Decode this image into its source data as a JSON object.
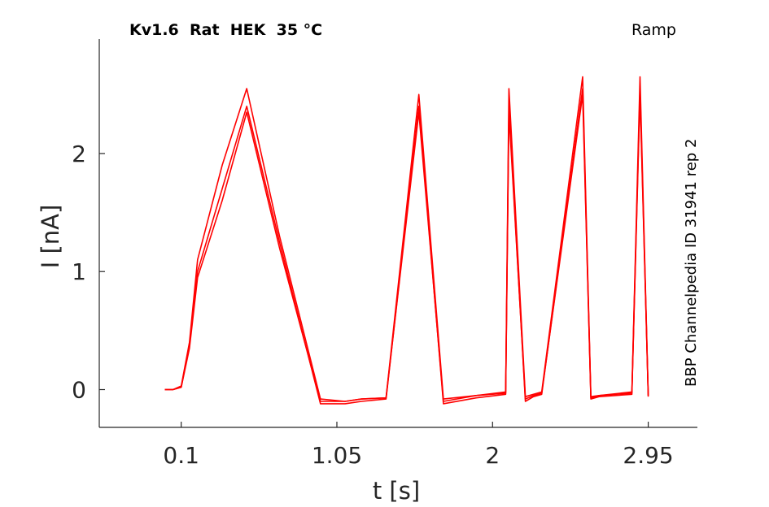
{
  "chart_data": {
    "type": "line",
    "title": "Kv1.6  Rat  HEK  35 °C",
    "protocol": "Ramp",
    "source": "BBP Channelpedia ID 31941 rep 2",
    "xlabel": "t [s]",
    "ylabel": "I [nA]",
    "xlim": [
      -0.4,
      3.25
    ],
    "ylim": [
      -0.32,
      2.97
    ],
    "xticks": [
      0.1,
      1.05,
      2,
      2.95
    ],
    "xtick_labels": [
      "0.1",
      "1.05",
      "2",
      "2.95"
    ],
    "yticks": [
      0,
      1,
      2
    ],
    "ytick_labels": [
      "0",
      "1",
      "2"
    ],
    "grid": false,
    "color": "#ff0000",
    "series": [
      {
        "x": [
          -0.0,
          0.05,
          0.1,
          0.15,
          0.2,
          0.35,
          0.5,
          0.7,
          0.95,
          1.1,
          1.2,
          1.35,
          1.55,
          1.7,
          1.9,
          2.08,
          2.1,
          2.2,
          2.25,
          2.3,
          2.55,
          2.6,
          2.65,
          2.85,
          2.9,
          2.95
        ],
        "y": [
          0.0,
          0.0,
          0.02,
          0.35,
          0.95,
          1.6,
          2.35,
          1.2,
          -0.1,
          -0.1,
          -0.08,
          -0.07,
          2.35,
          -0.1,
          -0.05,
          -0.03,
          2.35,
          -0.08,
          -0.05,
          -0.03,
          2.5,
          -0.07,
          -0.05,
          -0.03,
          2.5,
          -0.05
        ]
      },
      {
        "x": [
          -0.0,
          0.05,
          0.1,
          0.15,
          0.2,
          0.35,
          0.5,
          0.7,
          0.95,
          1.1,
          1.2,
          1.35,
          1.55,
          1.7,
          1.9,
          2.08,
          2.1,
          2.2,
          2.25,
          2.3,
          2.55,
          2.6,
          2.65,
          2.85,
          2.9,
          2.95
        ],
        "y": [
          0.0,
          0.0,
          0.03,
          0.4,
          1.1,
          1.9,
          2.55,
          1.3,
          -0.08,
          -0.1,
          -0.08,
          -0.07,
          2.5,
          -0.08,
          -0.05,
          -0.02,
          2.55,
          -0.06,
          -0.04,
          -0.02,
          2.65,
          -0.06,
          -0.05,
          -0.02,
          2.65,
          -0.05
        ]
      },
      {
        "x": [
          -0.0,
          0.05,
          0.1,
          0.15,
          0.2,
          0.35,
          0.5,
          0.7,
          0.95,
          1.1,
          1.2,
          1.35,
          1.55,
          1.7,
          1.9,
          2.08,
          2.1,
          2.2,
          2.25,
          2.3,
          2.55,
          2.6,
          2.65,
          2.85,
          2.9,
          2.95
        ],
        "y": [
          0.0,
          0.0,
          0.02,
          0.38,
          1.0,
          1.7,
          2.4,
          1.25,
          -0.12,
          -0.12,
          -0.1,
          -0.08,
          2.4,
          -0.12,
          -0.07,
          -0.04,
          2.4,
          -0.1,
          -0.06,
          -0.04,
          2.55,
          -0.08,
          -0.06,
          -0.04,
          2.55,
          -0.06
        ]
      }
    ]
  }
}
